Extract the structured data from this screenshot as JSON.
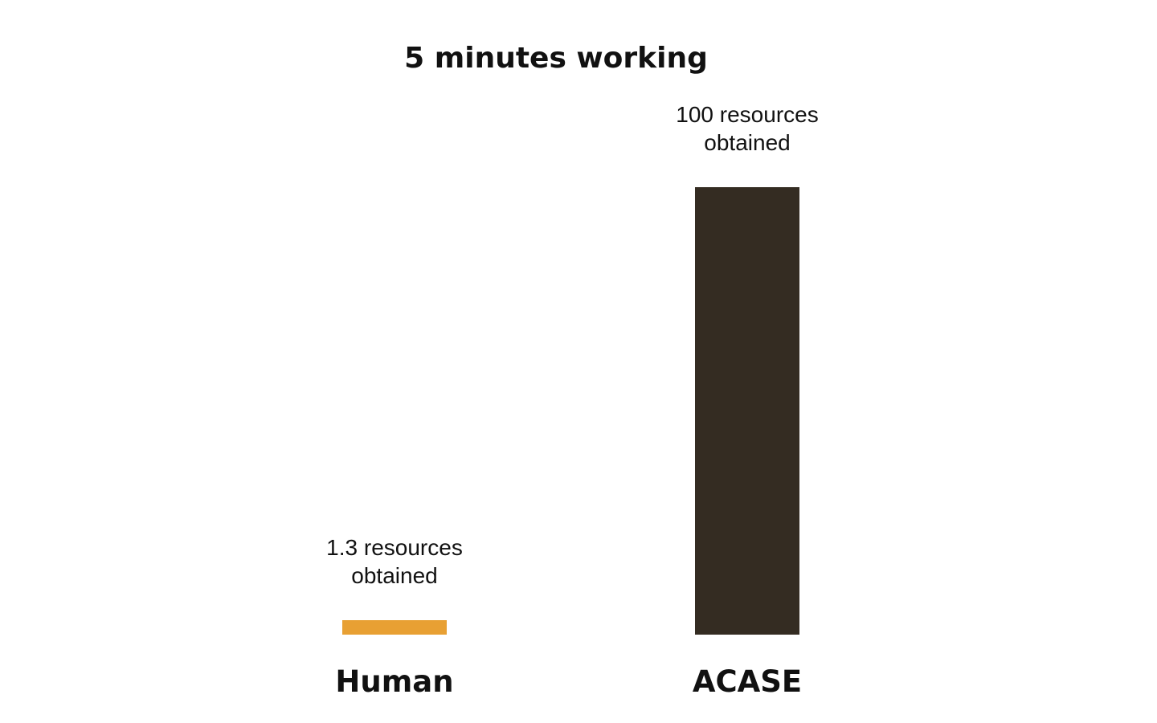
{
  "chart_data": {
    "type": "bar",
    "title": "5 minutes working",
    "categories": [
      "Human",
      "ACASE"
    ],
    "values": [
      1.3,
      100
    ],
    "data_labels": [
      [
        "1.3 resources",
        "obtained"
      ],
      [
        "100 resources",
        "obtained"
      ]
    ],
    "colors": [
      "#E8A033",
      "#342C22"
    ],
    "ylim": [
      0,
      100
    ],
    "xlabel": "",
    "ylabel": "",
    "grid": false,
    "legend": "none"
  }
}
